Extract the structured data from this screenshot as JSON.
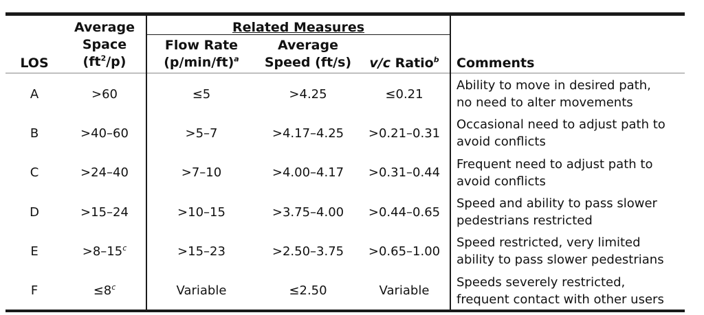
{
  "headers": {
    "los": "LOS",
    "space_line1": "Average",
    "space_line2": "Space",
    "space_line3": "(ft",
    "space_sup": "2",
    "space_line3b": "/p)",
    "related": "Related Measures",
    "flow_line1": "Flow Rate",
    "flow_line2": "(p/min/ft)",
    "flow_sup": "a",
    "speed_line1": "Average",
    "speed_line2": "Speed (ft/s)",
    "vc_italic": "v/c",
    "vc_text": " Ratio",
    "vc_sup": "b",
    "comments": "Comments"
  },
  "rows": [
    {
      "los": "A",
      "space": ">60",
      "space_sup": "",
      "flow": "≤5",
      "speed": ">4.25",
      "vc": "≤0.21",
      "comment1": "Ability to move in desired path,",
      "comment2": "no need to alter movements"
    },
    {
      "los": "B",
      "space": ">40–60",
      "space_sup": "",
      "flow": ">5–7",
      "speed": ">4.17–4.25",
      "vc": ">0.21–0.31",
      "comment1": "Occasional need to adjust path to",
      "comment2": "avoid conflicts"
    },
    {
      "los": "C",
      "space": ">24–40",
      "space_sup": "",
      "flow": ">7–10",
      "speed": ">4.00–4.17",
      "vc": ">0.31–0.44",
      "comment1": "Frequent need to adjust path to",
      "comment2": "avoid conflicts"
    },
    {
      "los": "D",
      "space": ">15–24",
      "space_sup": "",
      "flow": ">10–15",
      "speed": ">3.75–4.00",
      "vc": ">0.44–0.65",
      "comment1": "Speed and ability to pass slower",
      "comment2": "pedestrians restricted"
    },
    {
      "los": "E",
      "space": ">8–15",
      "space_sup": "c",
      "flow": ">15–23",
      "speed": ">2.50–3.75",
      "vc": ">0.65–1.00",
      "comment1": "Speed restricted, very limited",
      "comment2": "ability to pass slower pedestrians"
    },
    {
      "los": "F",
      "space": "≤8",
      "space_sup": "c",
      "flow": "Variable",
      "speed": "≤2.50",
      "vc": "Variable",
      "comment1": "Speeds severely restricted,",
      "comment2": "frequent contact with other users"
    }
  ]
}
